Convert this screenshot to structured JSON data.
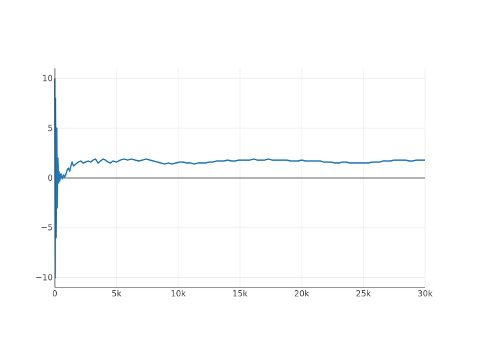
{
  "chart_data": {
    "type": "line",
    "title": "",
    "xlabel": "",
    "ylabel": "",
    "xlim": [
      0,
      30000
    ],
    "ylim": [
      -11,
      11
    ],
    "grid": true,
    "legend": "none",
    "x_ticks": [
      {
        "value": 0,
        "label": "0"
      },
      {
        "value": 5000,
        "label": "5k"
      },
      {
        "value": 10000,
        "label": "10k"
      },
      {
        "value": 15000,
        "label": "15k"
      },
      {
        "value": 20000,
        "label": "20k"
      },
      {
        "value": 25000,
        "label": "25k"
      },
      {
        "value": 30000,
        "label": "30k"
      }
    ],
    "y_ticks": [
      {
        "value": 10,
        "label": "10"
      },
      {
        "value": 5,
        "label": "5"
      },
      {
        "value": 0,
        "label": "0"
      },
      {
        "value": -5,
        "label": "−5"
      },
      {
        "value": -10,
        "label": "−10"
      }
    ],
    "series": [
      {
        "color": "#1f77b4",
        "x": [
          0,
          30,
          60,
          100,
          150,
          200,
          250,
          300,
          350,
          400,
          500,
          600,
          700,
          800,
          900,
          1000,
          1100,
          1200,
          1300,
          1400,
          1500,
          1700,
          1900,
          2100,
          2300,
          2500,
          2700,
          2900,
          3100,
          3300,
          3500,
          3700,
          3900,
          4100,
          4300,
          4500,
          4700,
          5000,
          5300,
          5600,
          5900,
          6200,
          6500,
          6800,
          7100,
          7400,
          7700,
          8000,
          8300,
          8600,
          8900,
          9200,
          9500,
          9800,
          10100,
          10400,
          10700,
          11000,
          11300,
          11600,
          11900,
          12200,
          12500,
          12800,
          13100,
          13400,
          13700,
          14000,
          14300,
          14600,
          14900,
          15200,
          15500,
          15800,
          16100,
          16400,
          16700,
          17000,
          17300,
          17600,
          17900,
          18200,
          18500,
          18800,
          19100,
          19400,
          19700,
          20000,
          20300,
          20600,
          20900,
          21200,
          21500,
          21800,
          22100,
          22400,
          22700,
          23000,
          23300,
          23600,
          23900,
          24200,
          24500,
          24800,
          25100,
          25400,
          25700,
          26000,
          26300,
          26600,
          26900,
          27200,
          27500,
          27800,
          28100,
          28400,
          28700,
          29000,
          29300,
          29600,
          29900,
          30000
        ],
        "y": [
          10,
          -10,
          8,
          -6,
          5,
          -3,
          2,
          -0.5,
          0.6,
          -0.3,
          0.4,
          -0.1,
          0.3,
          0.1,
          0.4,
          0.8,
          1.0,
          0.7,
          1.2,
          1.6,
          1.2,
          1.4,
          1.6,
          1.7,
          1.5,
          1.6,
          1.7,
          1.6,
          1.8,
          1.9,
          1.5,
          1.7,
          1.9,
          1.8,
          1.6,
          1.5,
          1.7,
          1.6,
          1.8,
          1.9,
          1.8,
          1.9,
          1.8,
          1.7,
          1.8,
          1.9,
          1.8,
          1.7,
          1.6,
          1.5,
          1.4,
          1.5,
          1.4,
          1.5,
          1.6,
          1.6,
          1.5,
          1.5,
          1.4,
          1.5,
          1.5,
          1.5,
          1.6,
          1.6,
          1.7,
          1.7,
          1.7,
          1.8,
          1.7,
          1.7,
          1.8,
          1.8,
          1.8,
          1.8,
          1.9,
          1.8,
          1.8,
          1.8,
          1.9,
          1.8,
          1.8,
          1.8,
          1.8,
          1.8,
          1.7,
          1.7,
          1.7,
          1.8,
          1.7,
          1.7,
          1.7,
          1.7,
          1.7,
          1.6,
          1.6,
          1.6,
          1.5,
          1.5,
          1.6,
          1.6,
          1.5,
          1.5,
          1.5,
          1.5,
          1.5,
          1.5,
          1.6,
          1.6,
          1.6,
          1.7,
          1.7,
          1.7,
          1.8,
          1.8,
          1.8,
          1.8,
          1.7,
          1.7,
          1.8,
          1.8,
          1.8,
          1.8
        ]
      }
    ]
  }
}
